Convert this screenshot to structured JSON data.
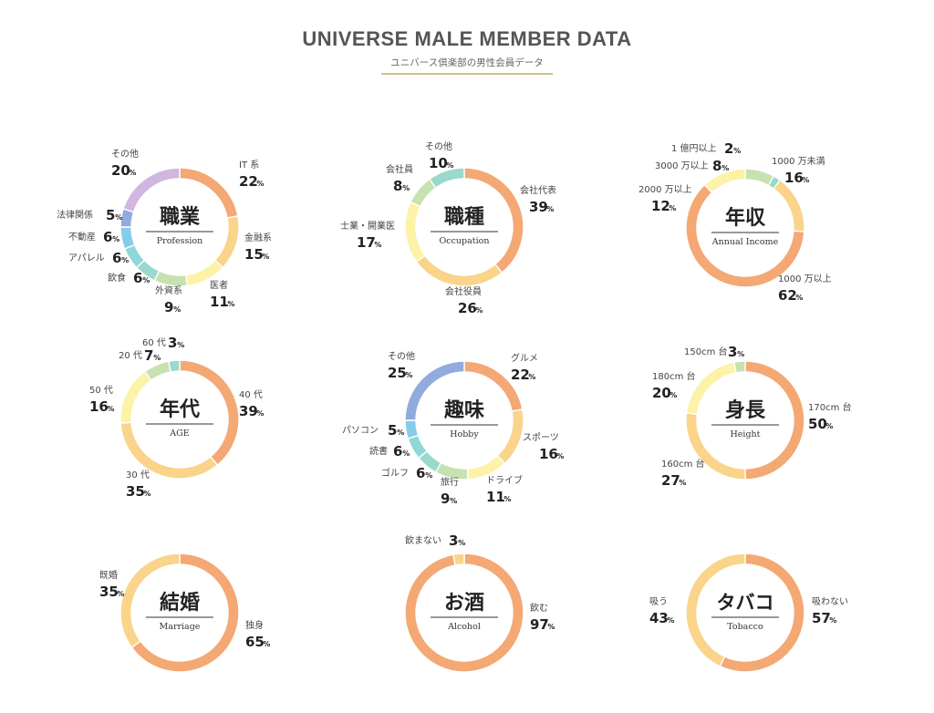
{
  "header": {
    "title": "UNIVERSE MALE MEMBER DATA",
    "subtitle": "ユニバース倶楽部の男性会員データ"
  },
  "colors": {
    "orange": "#f4a874",
    "yellow": "#f9d48a",
    "light_yellow": "#fcf2a8",
    "mint": "#c6e2b0",
    "teal": "#9ad9cd",
    "sky": "#83cdea",
    "blue": "#91abde",
    "lavender": "#d1b6e0"
  },
  "chart_data": [
    {
      "type": "pie",
      "variant": "donut",
      "name": "profession",
      "title": "職業",
      "subtitle": "Profession",
      "slices": [
        {
          "label": "IT 系",
          "value": 22,
          "color": "#f4a874"
        },
        {
          "label": "金融系",
          "value": 15,
          "color": "#f9d48a"
        },
        {
          "label": "医者",
          "value": 11,
          "color": "#fcf2a8"
        },
        {
          "label": "外資系",
          "value": 9,
          "color": "#c6e2b0"
        },
        {
          "label": "飲食",
          "value": 6,
          "color": "#9ad9cd"
        },
        {
          "label": "アパレル",
          "value": 6,
          "color": "#8ed8d6"
        },
        {
          "label": "不動産",
          "value": 6,
          "color": "#83cdea"
        },
        {
          "label": "法律関係",
          "value": 5,
          "color": "#91abde"
        },
        {
          "label": "その他",
          "value": 20,
          "color": "#d1b6e0"
        }
      ]
    },
    {
      "type": "pie",
      "variant": "donut",
      "name": "occupation",
      "title": "職種",
      "subtitle": "Occupation",
      "slices": [
        {
          "label": "会社代表",
          "value": 39,
          "color": "#f4a874"
        },
        {
          "label": "会社役員",
          "value": 26,
          "color": "#f9d48a"
        },
        {
          "label": "士業・開業医",
          "value": 17,
          "color": "#fcf2a8"
        },
        {
          "label": "会社員",
          "value": 8,
          "color": "#c6e2b0"
        },
        {
          "label": "その他",
          "value": 10,
          "color": "#9ad9cd"
        }
      ]
    },
    {
      "type": "pie",
      "variant": "donut",
      "name": "income",
      "title": "年収",
      "subtitle": "Annual Income",
      "slices": [
        {
          "label": "1000 万以上",
          "value": 62,
          "color": "#f4a874"
        },
        {
          "label": "1000 万未満",
          "value": 16,
          "color": "#f9d48a"
        },
        {
          "label": "2000 万以上",
          "value": 12,
          "color": "#fcf2a8"
        },
        {
          "label": "3000 万以上",
          "value": 8,
          "color": "#c6e2b0"
        },
        {
          "label": "1 億円以上",
          "value": 2,
          "color": "#9ad9cd"
        }
      ],
      "slice_order": [
        3,
        4,
        1,
        0,
        2
      ]
    },
    {
      "type": "pie",
      "variant": "donut",
      "name": "age",
      "title": "年代",
      "subtitle": "AGE",
      "slices": [
        {
          "label": "40 代",
          "value": 39,
          "color": "#f4a874"
        },
        {
          "label": "30 代",
          "value": 35,
          "color": "#f9d48a"
        },
        {
          "label": "50 代",
          "value": 16,
          "color": "#fcf2a8"
        },
        {
          "label": "20 代",
          "value": 7,
          "color": "#c6e2b0"
        },
        {
          "label": "60 代",
          "value": 3,
          "color": "#9ad9cd"
        }
      ]
    },
    {
      "type": "pie",
      "variant": "donut",
      "name": "hobby",
      "title": "趣味",
      "subtitle": "Hobby",
      "slices": [
        {
          "label": "グルメ",
          "value": 22,
          "color": "#f4a874"
        },
        {
          "label": "スポーツ",
          "value": 16,
          "color": "#f9d48a"
        },
        {
          "label": "ドライブ",
          "value": 11,
          "color": "#fcf2a8"
        },
        {
          "label": "旅行",
          "value": 9,
          "color": "#c6e2b0"
        },
        {
          "label": "ゴルフ",
          "value": 6,
          "color": "#9ad9cd"
        },
        {
          "label": "読書",
          "value": 6,
          "color": "#8ed8d6"
        },
        {
          "label": "パソコン",
          "value": 5,
          "color": "#83cdea"
        },
        {
          "label": "その他",
          "value": 25,
          "color": "#91abde"
        }
      ]
    },
    {
      "type": "pie",
      "variant": "donut",
      "name": "height",
      "title": "身長",
      "subtitle": "Height",
      "slices": [
        {
          "label": "170cm 台",
          "value": 50,
          "color": "#f4a874"
        },
        {
          "label": "160cm 台",
          "value": 27,
          "color": "#f9d48a"
        },
        {
          "label": "180cm 台",
          "value": 20,
          "color": "#fcf2a8"
        },
        {
          "label": "150cm 台",
          "value": 3,
          "color": "#c6e2b0"
        }
      ]
    },
    {
      "type": "pie",
      "variant": "donut",
      "name": "marriage",
      "title": "結婚",
      "subtitle": "Marriage",
      "slices": [
        {
          "label": "独身",
          "value": 65,
          "color": "#f4a874"
        },
        {
          "label": "既婚",
          "value": 35,
          "color": "#f9d48a"
        }
      ]
    },
    {
      "type": "pie",
      "variant": "donut",
      "name": "alcohol",
      "title": "お酒",
      "subtitle": "Alcohol",
      "slices": [
        {
          "label": "飲む",
          "value": 97,
          "color": "#f4a874"
        },
        {
          "label": "飲まない",
          "value": 3,
          "color": "#f9d48a"
        }
      ]
    },
    {
      "type": "pie",
      "variant": "donut",
      "name": "tobacco",
      "title": "タバコ",
      "subtitle": "Tobacco",
      "slices": [
        {
          "label": "吸わない",
          "value": 57,
          "color": "#f4a874"
        },
        {
          "label": "吸う",
          "value": 43,
          "color": "#f9d48a"
        }
      ]
    }
  ]
}
